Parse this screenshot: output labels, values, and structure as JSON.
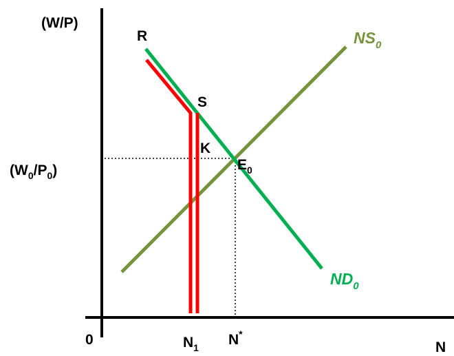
{
  "axes": {
    "y_label": "(W/P)",
    "x_label": "N",
    "origin_label": "0"
  },
  "ticks": {
    "real_wage_main": "(W",
    "real_wage_sub1": "0",
    "real_wage_mid": "/P",
    "real_wage_sub2": "0",
    "real_wage_close": ")",
    "n1_main": "N",
    "n1_sub": "1",
    "nstar_main": "N",
    "nstar_sup": "*"
  },
  "points": {
    "r": "R",
    "s": "S",
    "k": "K",
    "e_main": "E",
    "e_sub": "0"
  },
  "curves": {
    "ns_main": "NS",
    "ns_sub": "0",
    "nd_main": "ND",
    "nd_sub": "0"
  },
  "colors": {
    "nd": "#00b050",
    "ns": "#77933c",
    "constrained": "#ff0000",
    "axis": "#000000"
  }
}
